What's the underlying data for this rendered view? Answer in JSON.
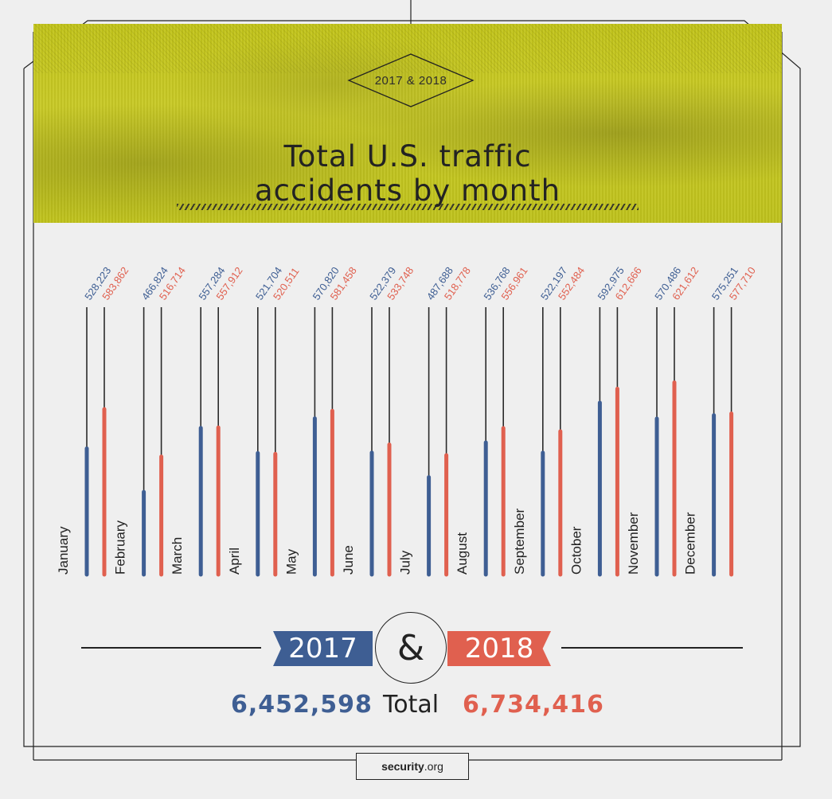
{
  "header": {
    "badge": "2017 & 2018",
    "title_line1": "Total U.S. traffic",
    "title_line2": "accidents by month"
  },
  "colors": {
    "series_2017": "#3e5e93",
    "series_2018": "#e0604f",
    "header_bg": "#c3c51a",
    "text": "#222222"
  },
  "chart_data": {
    "type": "bar",
    "categories": [
      "January",
      "February",
      "March",
      "April",
      "May",
      "June",
      "July",
      "August",
      "September",
      "October",
      "November",
      "December"
    ],
    "series": [
      {
        "name": "2017",
        "values": [
          528223,
          466824,
          557284,
          521704,
          570820,
          522379,
          487688,
          536768,
          522197,
          592975,
          570486,
          575251
        ],
        "labels": [
          "528,223",
          "466,824",
          "557,284",
          "521,704",
          "570,820",
          "522,379",
          "487,688",
          "536,768",
          "522,197",
          "592,975",
          "570,486",
          "575,251"
        ]
      },
      {
        "name": "2018",
        "values": [
          583862,
          516714,
          557912,
          520511,
          581458,
          533748,
          518778,
          556961,
          552484,
          612666,
          621612,
          577710
        ],
        "labels": [
          "583,862",
          "516,714",
          "557,912",
          "520,511",
          "581,458",
          "533,748",
          "518,778",
          "556,961",
          "552,484",
          "612,666",
          "621,612",
          "577,710"
        ]
      }
    ],
    "title": "Total U.S. traffic accidents by month",
    "xlabel": "",
    "ylabel": "",
    "grid": false,
    "legend": "bottom"
  },
  "legend": {
    "label_2017": "2017",
    "ampersand": "&",
    "label_2018": "2018"
  },
  "totals": {
    "total_2017": "6,452,598",
    "label": "Total",
    "total_2018": "6,734,416"
  },
  "logo": {
    "name": "security",
    "tld": ".org"
  }
}
